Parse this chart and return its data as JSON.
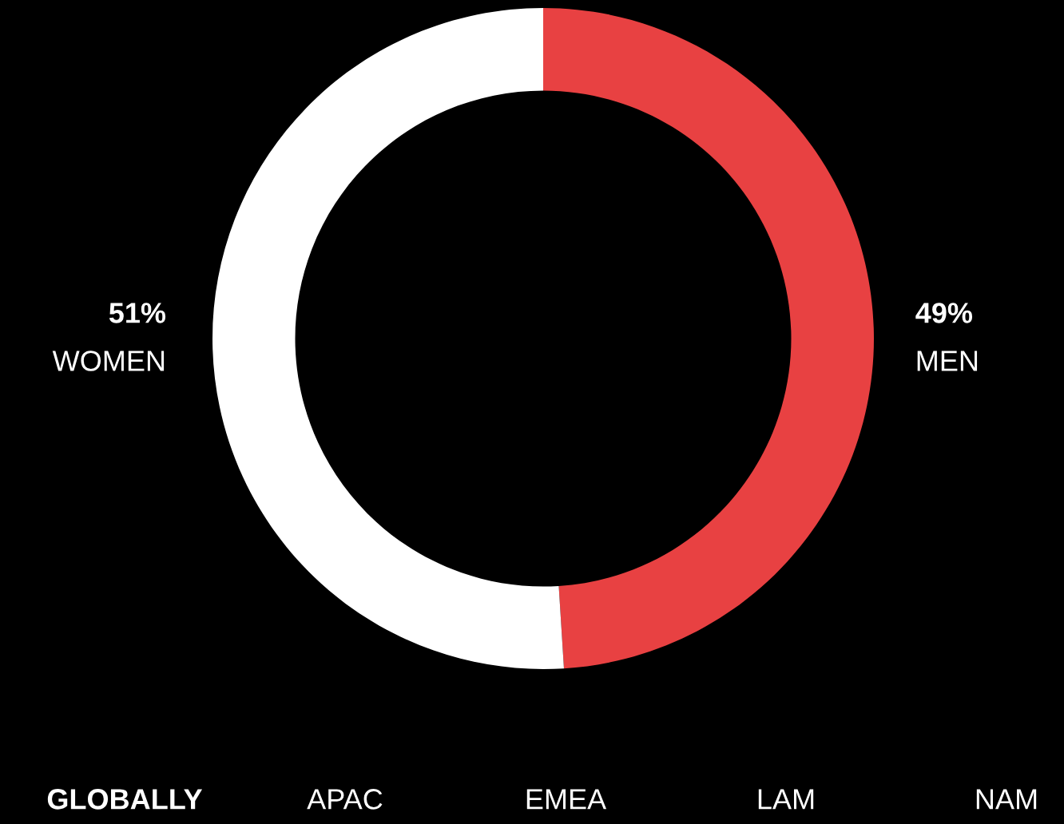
{
  "chart_data": {
    "type": "donut",
    "categories": [
      "MEN",
      "WOMEN"
    ],
    "values": [
      49,
      51
    ],
    "colors": [
      "#e84142",
      "#ffffff"
    ],
    "value_labels": [
      "49%",
      "51%"
    ],
    "legend": false,
    "annotations": [
      "GLOBALLY",
      "APAC",
      "EMEA",
      "LAM",
      "NAM"
    ]
  }
}
